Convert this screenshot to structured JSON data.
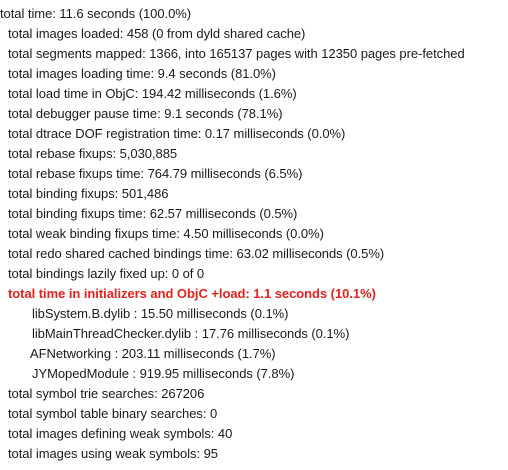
{
  "lines": [
    "total time: 11.6 seconds (100.0%)",
    "total images loaded: 458 (0 from dyld shared cache)",
    "total segments mapped: 1366, into 165137 pages with 12350 pages pre-fetched",
    "total images loading time: 9.4 seconds (81.0%)",
    "total load time in ObjC: 194.42 milliseconds (1.6%)",
    "total debugger pause time: 9.1 seconds (78.1%)",
    "total dtrace DOF registration time: 0.17 milliseconds (0.0%)",
    "total rebase fixups: 5,030,885",
    "total rebase fixups time: 764.79 milliseconds (6.5%)",
    "total binding fixups: 501,486",
    "total binding fixups time: 62.57 milliseconds (0.5%)",
    "total weak binding fixups time: 4.50 milliseconds (0.0%)",
    "total redo shared cached bindings time: 63.02 milliseconds (0.5%)",
    "total bindings lazily fixed up: 0 of 0",
    "total time in initializers and ObjC +load: 1.1 seconds (10.1%)",
    "libSystem.B.dylib : 15.50 milliseconds (0.1%)",
    "libMainThreadChecker.dylib : 17.76 milliseconds (0.1%)",
    "AFNetworking : 203.11 milliseconds (1.7%)",
    "JYMopedModule : 919.95 milliseconds (7.8%)",
    "total symbol trie searches: 267206",
    "total symbol table binary searches: 0",
    "total images defining weak symbols: 40",
    "total images using weak symbols: 95"
  ],
  "highlight_color": "#e8211c"
}
